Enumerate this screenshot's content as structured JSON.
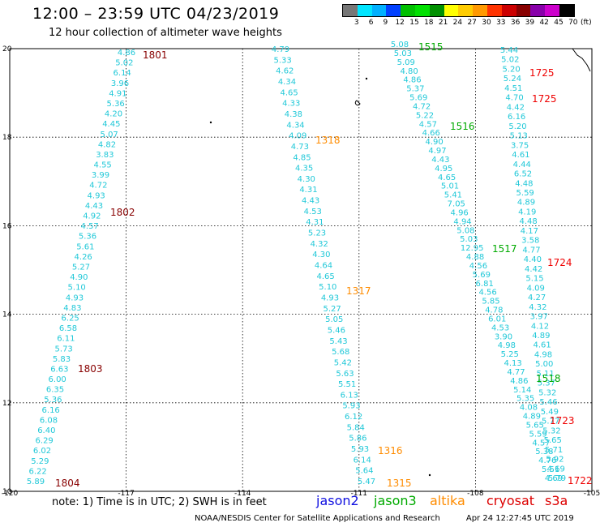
{
  "header": {
    "title": "12:00 – 23:59 UTC 04/23/2019",
    "subtitle": "12 hour collection of altimeter wave heights"
  },
  "color_scale": {
    "labels": [
      "3",
      "6",
      "9",
      "12",
      "15",
      "18",
      "21",
      "24",
      "27",
      "30",
      "33",
      "36",
      "39",
      "42",
      "45",
      "70"
    ],
    "unit": "(ft)",
    "colors": [
      "#777777",
      "#00e5ff",
      "#00b0ff",
      "#0040ff",
      "#00c000",
      "#00e000",
      "#009000",
      "#ffff00",
      "#ffcc00",
      "#ff9900",
      "#ff3300",
      "#cc0000",
      "#880000",
      "#8800aa",
      "#cc00cc",
      "#000000"
    ]
  },
  "map": {
    "lat_labels": [
      "20",
      "18",
      "16",
      "14",
      "12",
      "10"
    ],
    "lon_labels": [
      "-120",
      "-117",
      "-114",
      "-111",
      "-108",
      "-105"
    ],
    "bounds": {
      "lon_min": -120,
      "lon_max": -105,
      "lat_min": 10,
      "lat_max": 20
    }
  },
  "tracks": [
    {
      "satellite": "cryosat",
      "color": "#880000",
      "values": [
        "4.86",
        "5.02",
        "6.14",
        "3.96",
        "4.91",
        "5.36",
        "4.20",
        "4.45",
        "5.07",
        "4.82",
        "3.83",
        "4.55",
        "3.99",
        "4.72",
        "4.93",
        "4.43",
        "4.92",
        "4.57",
        "5.36",
        "5.61",
        "4.26",
        "5.27",
        "4.90",
        "5.10",
        "4.93",
        "4.83",
        "6.25",
        "6.58",
        "6.11",
        "5.73",
        "5.83",
        "6.63",
        "6.00",
        "6.35",
        "5.36",
        "6.16",
        "6.08",
        "6.40",
        "6.29",
        "6.02",
        "5.29",
        "6.22",
        "5.89"
      ]
    },
    {
      "satellite": "altika",
      "color": "#ff8c00",
      "values": [
        "4.79",
        "5.33",
        "4.62",
        "4.34",
        "4.65",
        "4.33",
        "4.38",
        "4.34",
        "4.09",
        "4.73",
        "4.85",
        "4.35",
        "4.30",
        "4.31",
        "4.43",
        "4.53",
        "4.31",
        "5.23",
        "4.32",
        "4.30",
        "4.64",
        "4.65",
        "5.10",
        "4.93",
        "5.27",
        "5.05",
        "5.46",
        "5.43",
        "5.68",
        "5.42",
        "5.63",
        "5.51",
        "6.13",
        "5.93",
        "6.12",
        "5.84",
        "5.86",
        "5.93",
        "6.14",
        "5.64",
        "5.47"
      ]
    },
    {
      "satellite": "jason3",
      "color": "#00aa00",
      "values": [
        "5.08",
        "5.03",
        "5.09",
        "4.80",
        "4.86",
        "5.37",
        "5.69",
        "4.72",
        "5.22",
        "4.57",
        "4.66",
        "4.90",
        "4.97",
        "4.43",
        "4.95",
        "4.65",
        "5.01",
        "5.41",
        "7.05",
        "4.96",
        "4.94",
        "5.08",
        "5.03",
        "12.95",
        "4.88",
        "4.56",
        "5.69",
        "6.81",
        "4.56",
        "5.85",
        "4.78",
        "6.01",
        "4.53",
        "3.90",
        "4.98",
        "5.25",
        "4.13",
        "4.77",
        "4.86",
        "5.14",
        "5.35",
        "4.08",
        "4.89",
        "5.65",
        "5.59",
        "4.57",
        "5.38",
        "4.76",
        "5.51",
        "4.69"
      ]
    },
    {
      "satellite": "s3a",
      "color": "#ee0000",
      "values": [
        "5.44",
        "5.02",
        "5.20",
        "5.24",
        "4.51",
        "4.70",
        "4.42",
        "6.16",
        "5.20",
        "5.13",
        "3.75",
        "4.61",
        "4.44",
        "6.52",
        "4.48",
        "5.59",
        "4.89",
        "4.19",
        "4.48",
        "4.17",
        "3.58",
        "4.77",
        "4.40",
        "4.42",
        "5.15",
        "4.09",
        "4.27",
        "4.32",
        "3.97",
        "4.12",
        "4.89",
        "4.61",
        "4.98",
        "5.00",
        "5.11",
        "5.37",
        "5.32",
        "5.46",
        "5.49",
        "5.77",
        "5.32",
        "5.65",
        "5.71",
        "5.92",
        "4.69",
        "5.79"
      ]
    }
  ],
  "track_labels": [
    {
      "text": "1801",
      "color": "#880000"
    },
    {
      "text": "1802",
      "color": "#880000"
    },
    {
      "text": "1803",
      "color": "#880000"
    },
    {
      "text": "1804",
      "color": "#880000"
    },
    {
      "text": "1318",
      "color": "#ff8c00"
    },
    {
      "text": "1317",
      "color": "#ff8c00"
    },
    {
      "text": "1316",
      "color": "#ff8c00"
    },
    {
      "text": "1315",
      "color": "#ff8c00"
    },
    {
      "text": "1515",
      "color": "#00aa00"
    },
    {
      "text": "1516",
      "color": "#00aa00"
    },
    {
      "text": "1517",
      "color": "#00aa00"
    },
    {
      "text": "1518",
      "color": "#00aa00"
    },
    {
      "text": "1725",
      "color": "#ee0000"
    },
    {
      "text": "1725",
      "color": "#ee0000"
    },
    {
      "text": "1724",
      "color": "#ee0000"
    },
    {
      "text": "1723",
      "color": "#ee0000"
    },
    {
      "text": "1722",
      "color": "#ee0000"
    }
  ],
  "legend": {
    "note": "note: 1) Time is in UTC; 2) SWH is in feet",
    "satellites": [
      {
        "name": "jason2",
        "color": "#1010e0"
      },
      {
        "name": "jason3",
        "color": "#00aa00"
      },
      {
        "name": "altika",
        "color": "#ff8c00"
      },
      {
        "name": "cryosat",
        "color": "#dd0000"
      },
      {
        "name": "s3a",
        "color": "#dd0000"
      }
    ]
  },
  "footer": {
    "credit": "NOAA/NESDIS Center for Satellite Applications and Research",
    "timestamp": "Apr 24 12:27:45 UTC 2019"
  }
}
